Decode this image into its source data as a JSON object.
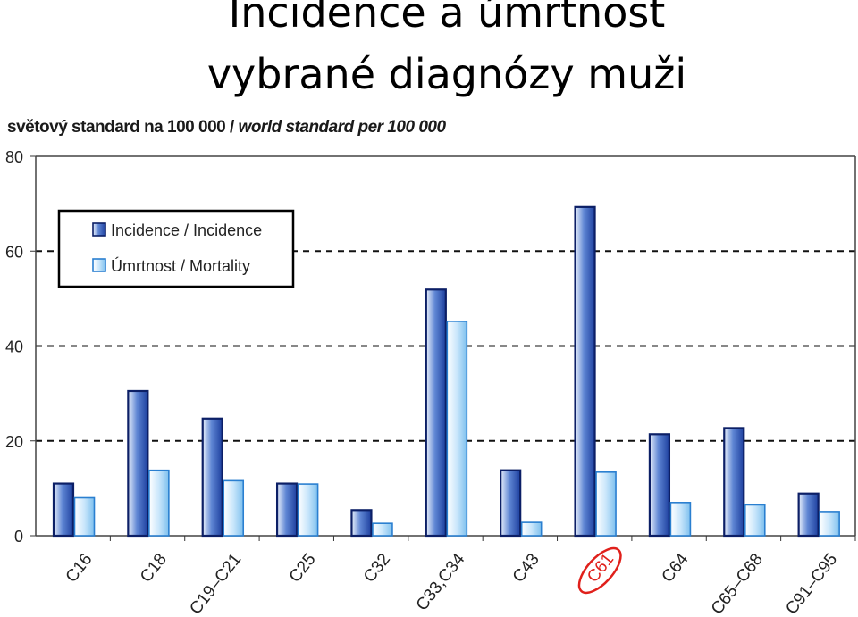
{
  "title_line1": "Incidence a úmrtnost",
  "title_line2": "vybrané diagnózy muži",
  "subtitle_cz": "světový standard na 100 000 / ",
  "subtitle_en": "world standard per 100 000",
  "highlight_color": "#e0201b",
  "chart_data": {
    "type": "bar",
    "categories": [
      "C16",
      "C18",
      "C19–C21",
      "C25",
      "C32",
      "C33,C34",
      "C43",
      "C61",
      "C64",
      "C65–C68",
      "C91–C95"
    ],
    "series": [
      {
        "name": "Incidence / Incidence",
        "values": [
          11,
          30.5,
          24.7,
          11,
          5.4,
          51.9,
          13.8,
          69.3,
          21.4,
          22.7,
          8.9
        ],
        "color": "#1f4fb8"
      },
      {
        "name": "Úmrtnost / Mortality",
        "values": [
          8,
          13.8,
          11.6,
          10.9,
          2.6,
          45.2,
          2.8,
          13.4,
          7,
          6.5,
          5.1
        ],
        "color": "#8fc6ef"
      }
    ],
    "ylim": [
      0,
      80
    ],
    "yticks": [
      0,
      20,
      40,
      60,
      80
    ],
    "grid": true,
    "legend_position": "top-left",
    "highlighted_category": "C61"
  }
}
